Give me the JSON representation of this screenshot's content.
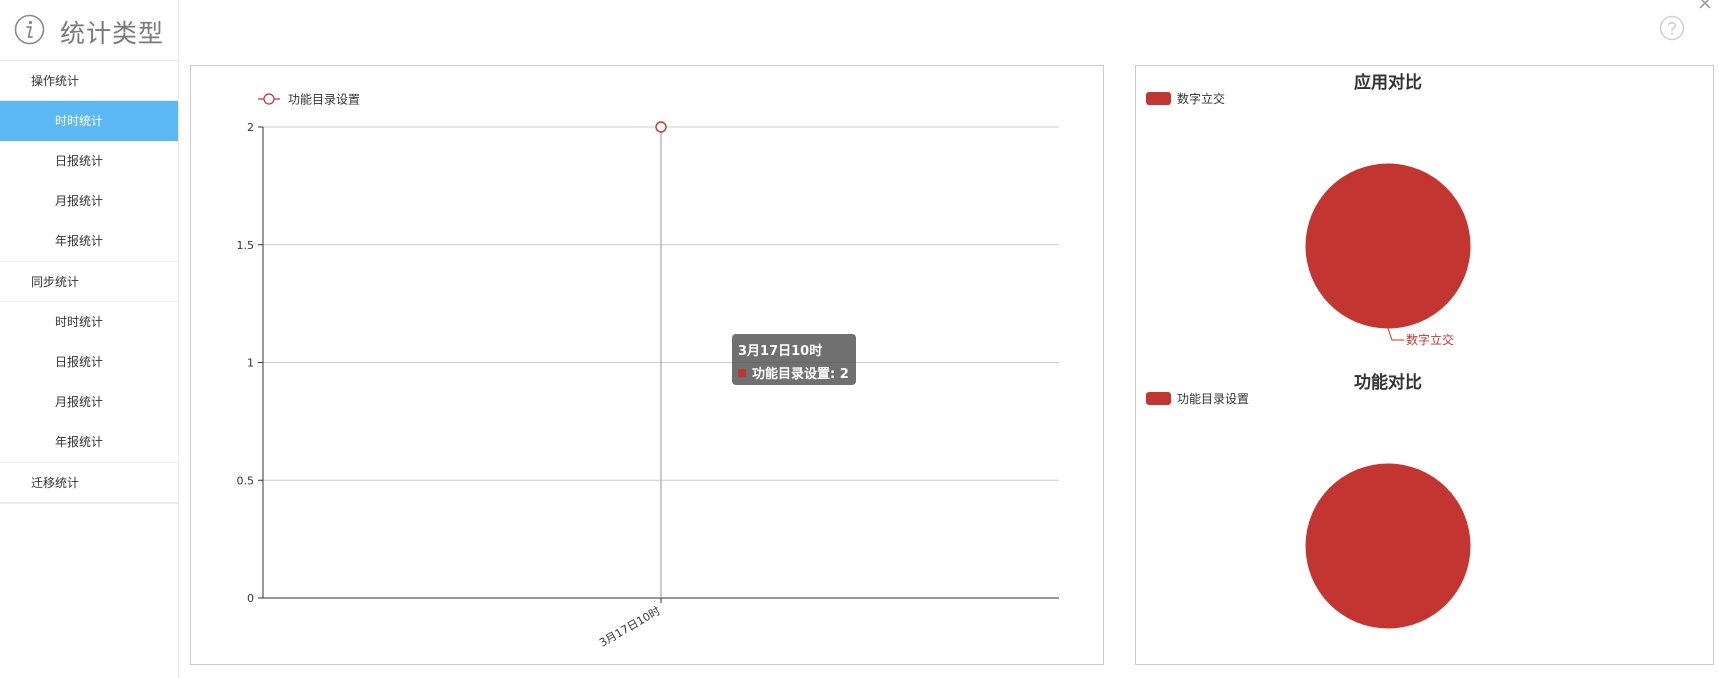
{
  "sidebar": {
    "title": "统计类型",
    "groups": [
      {
        "label": "操作统计",
        "items": [
          "时时统计",
          "日报统计",
          "月报统计",
          "年报统计"
        ],
        "active_index": 0
      },
      {
        "label": "同步统计",
        "items": [
          "时时统计",
          "日报统计",
          "月报统计",
          "年报统计"
        ],
        "active_index": -1
      },
      {
        "label": "迁移统计",
        "items": [],
        "active_index": -1
      }
    ]
  },
  "icons": {
    "info": "info-icon",
    "help": "help-icon",
    "close": "close-icon"
  },
  "colors": {
    "accent": "#5cb8f3",
    "series": "#c23531",
    "tooltip_bg": "#505050"
  },
  "tooltip": {
    "title": "3月17日10时",
    "series_name": "功能目录设置",
    "value": "功能目录设置: 2"
  },
  "chart_data": [
    {
      "type": "line",
      "legend": [
        "功能目录设置"
      ],
      "categories": [
        "3月17日10时"
      ],
      "series": [
        {
          "name": "功能目录设置",
          "values": [
            2
          ]
        }
      ],
      "yticks": [
        "0",
        "0.5",
        "1",
        "1.5",
        "2"
      ],
      "ylim": [
        0,
        2
      ],
      "grid": true,
      "legend_position": "top-left"
    },
    {
      "type": "pie",
      "title": "应用对比",
      "legend": [
        "数字立交"
      ],
      "slices": [
        {
          "name": "数字立交",
          "value": 1
        }
      ],
      "slice_label": "数字立交",
      "legend_position": "top-left"
    },
    {
      "type": "pie",
      "title": "功能对比",
      "legend": [
        "功能目录设置"
      ],
      "slices": [
        {
          "name": "功能目录设置",
          "value": 1
        }
      ],
      "legend_position": "top-left"
    }
  ]
}
